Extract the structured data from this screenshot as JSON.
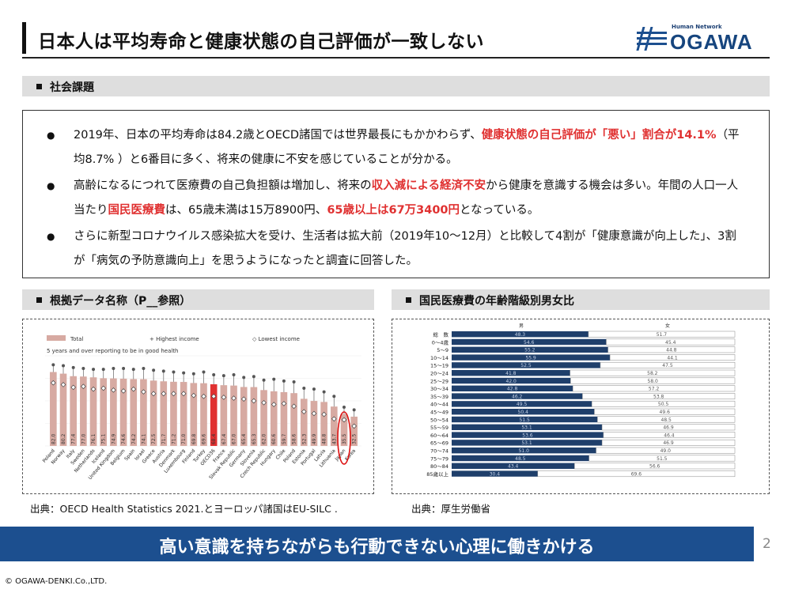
{
  "title": "日本人は平均寿命と健康状態の自己評価が一致しない",
  "logo": {
    "small": "Human Network",
    "main": "OGAWA"
  },
  "section1": {
    "heading": "社会課題"
  },
  "bullets": [
    {
      "parts": [
        {
          "t": "2019年、日本の平均寿命は84.2歳とOECD諸国では世界最長にもかかわらず、"
        },
        {
          "t": "健康状態の自己評価が「悪い」割合が14.1%",
          "red": true
        },
        {
          "t": "（平均8.7% ）と6番目に多く、将来の健康に不安を感じていることが分かる。"
        }
      ]
    },
    {
      "parts": [
        {
          "t": "高齢になるにつれて医療費の自己負担額は増加し、将来の"
        },
        {
          "t": "収入減による経済不安",
          "red": true
        },
        {
          "t": "から健康を意識する機会は多い。年間の人口一人当たり"
        },
        {
          "t": "国民医療費",
          "red": true
        },
        {
          "t": "は、65歳未満は15万8900円、"
        },
        {
          "t": "65歳以上は67万3400円",
          "red": true
        },
        {
          "t": "となっている。"
        }
      ]
    },
    {
      "parts": [
        {
          "t": "さらに新型コロナウイルス感染拡大を受け、生活者は拡大前（2019年10～12月）と比較して4割が「健康意識が向上した」、3割が「病気の予防意識向上」を思うようになったと調査に回答した。"
        }
      ]
    }
  ],
  "bullet_symbol": "●",
  "section2": {
    "heading": "根拠データ名称（P__参照）"
  },
  "section3": {
    "heading": "国民医療費の年齢階級別男女比"
  },
  "chart_data": [
    {
      "type": "bar",
      "title": "5 years and over reporting to be in good health",
      "legend": [
        "Total",
        "Highest income",
        "Lowest income"
      ],
      "categories": [
        "Poland",
        "Norway",
        "Italy",
        "Sweden",
        "Netherlands",
        "Iceland",
        "United Kingdom",
        "Belgium",
        "Spain",
        "Israel",
        "Greece",
        "Austria",
        "Denmark",
        "Luxembourg",
        "Finland",
        "Turkey",
        "OECD36",
        "France",
        "Slovak Republic",
        "Germany",
        "Slovenia",
        "Czech Republic",
        "Hungary",
        "Chile",
        "Poland",
        "Estonia",
        "Portugal",
        "Latvia",
        "Lithuania",
        "Japan",
        "Korea"
      ],
      "values": [
        82.0,
        80.2,
        77.4,
        77.0,
        76.1,
        75.1,
        74.9,
        74.6,
        74.2,
        74.1,
        72.5,
        71.7,
        71.2,
        71.0,
        69.8,
        69.6,
        68.4,
        67.4,
        67.0,
        65.4,
        65.3,
        62.0,
        60.6,
        59.7,
        58.6,
        52.3,
        49.9,
        48.8,
        43.7,
        35.5,
        32.5
      ],
      "highest": [
        90,
        89,
        87,
        86,
        85,
        85,
        86,
        86,
        85,
        86,
        84,
        83,
        82,
        81,
        80,
        82,
        79,
        78,
        79,
        76,
        77,
        73,
        74,
        72,
        71,
        64,
        63,
        60,
        55,
        43,
        40
      ],
      "lowest": [
        70,
        68,
        65,
        66,
        63,
        64,
        62,
        61,
        63,
        60,
        58,
        58,
        58,
        58,
        56,
        55,
        55,
        54,
        53,
        52,
        50,
        48,
        46,
        47,
        44,
        38,
        36,
        35,
        30,
        29,
        22
      ],
      "ylim": [
        0,
        100
      ],
      "highlight": [
        "OECD36",
        "Japan"
      ]
    },
    {
      "type": "bar",
      "subtype": "stacked-horizontal-100",
      "header_male": "男",
      "header_female": "女",
      "categories": [
        "総　数",
        "0～4歳",
        "5～9",
        "10～14",
        "15～19",
        "20～24",
        "25～29",
        "30～34",
        "35～39",
        "40～44",
        "45～49",
        "50～54",
        "55～59",
        "60～64",
        "65～69",
        "70～74",
        "75～79",
        "80～84",
        "85歳以上"
      ],
      "male": [
        48.3,
        54.6,
        55.2,
        55.9,
        52.5,
        41.8,
        42.0,
        42.8,
        46.2,
        49.5,
        50.4,
        51.5,
        53.1,
        53.6,
        53.1,
        51.0,
        48.5,
        43.4,
        30.4
      ],
      "female": [
        51.7,
        45.4,
        44.8,
        44.1,
        47.5,
        58.2,
        58.0,
        57.2,
        53.8,
        50.5,
        49.6,
        48.5,
        46.9,
        46.4,
        46.9,
        49.0,
        51.5,
        56.6,
        69.6
      ],
      "colors": {
        "male": "#1f3f6b",
        "female": "#ffffff"
      }
    }
  ],
  "source_left": "出典：OECD Health Statistics 2021.とヨーロッパ諸国はEU-SILC .",
  "source_right": "出典：厚生労働省",
  "banner": "高い意識を持ちながらも行動できない心理に働きかける",
  "page_number": "2",
  "copyright": "© OGAWA-DENKI.Co.,LTD."
}
